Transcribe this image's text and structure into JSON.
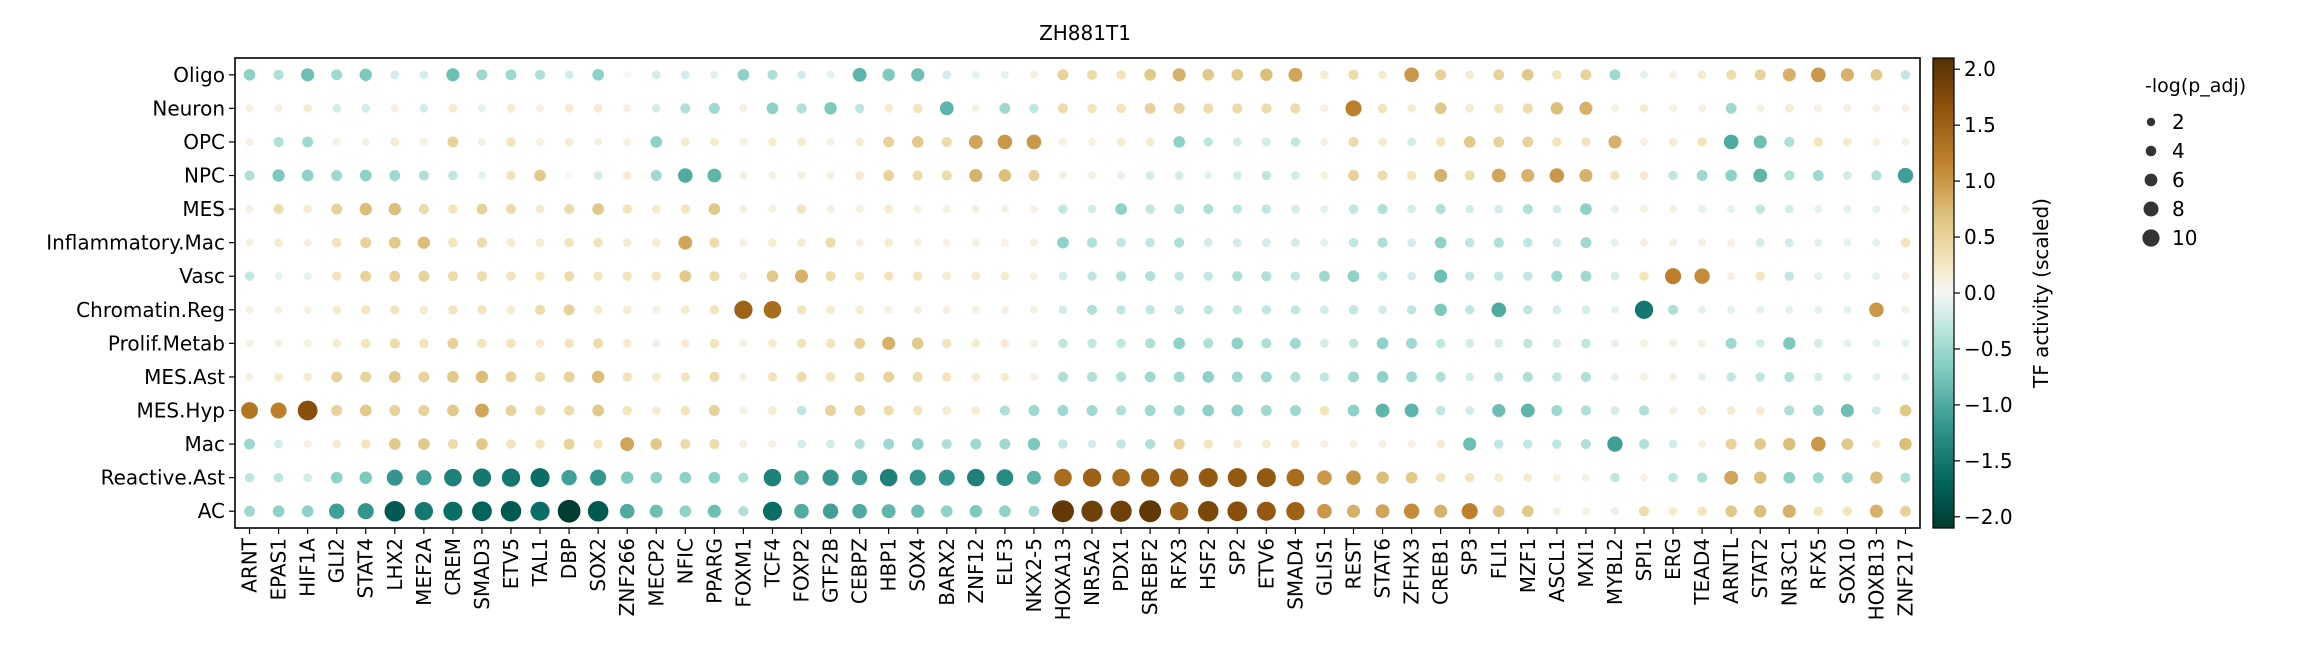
{
  "chart_data": {
    "type": "dotplot",
    "title": "ZH881T1",
    "rows": [
      "Oligo",
      "Neuron",
      "OPC",
      "NPC",
      "MES",
      "Inflammatory.Mac",
      "Vasc",
      "Chromatin.Reg",
      "Prolif.Metab",
      "MES.Ast",
      "MES.Hyp",
      "Mac",
      "Reactive.Ast",
      "AC"
    ],
    "columns": [
      "ARNT",
      "EPAS1",
      "HIF1A",
      "GLI2",
      "STAT4",
      "LHX2",
      "MEF2A",
      "CREM",
      "SMAD3",
      "ETV5",
      "TAL1",
      "DBP",
      "SOX2",
      "ZNF266",
      "MECP2",
      "NFIC",
      "PPARG",
      "FOXM1",
      "TCF4",
      "FOXP2",
      "GTF2B",
      "CEBPZ",
      "HBP1",
      "SOX4",
      "BARX2",
      "ZNF12",
      "ELF3",
      "NKX2-5",
      "HOXA13",
      "NR5A2",
      "PDX1",
      "SREBF2",
      "RFX3",
      "HSF2",
      "SP2",
      "ETV6",
      "SMAD4",
      "GLIS1",
      "REST",
      "STAT6",
      "ZFHX3",
      "CREB1",
      "SP3",
      "FLI1",
      "MZF1",
      "ASCL1",
      "MXI1",
      "MYBL2",
      "SPI1",
      "ERG",
      "TEAD4",
      "ARNTL",
      "STAT2",
      "NR3C1",
      "RFX5",
      "SOX10",
      "HOXB13",
      "ZNF217"
    ],
    "activity": [
      [
        -0.6,
        -0.4,
        -0.8,
        -0.5,
        -0.7,
        -0.2,
        -0.2,
        -0.8,
        -0.5,
        -0.5,
        -0.4,
        -0.2,
        -0.6,
        0,
        -0.2,
        -0.2,
        -0.1,
        -0.6,
        -0.4,
        -0.2,
        -0.1,
        -0.9,
        -0.7,
        -0.8,
        -0.2,
        -0.1,
        -0.1,
        0.1,
        0.5,
        0.4,
        0.3,
        0.6,
        0.8,
        0.6,
        0.6,
        0.7,
        0.9,
        0.2,
        0.4,
        0.2,
        1.0,
        0.5,
        0.2,
        0.5,
        0.6,
        0.3,
        0.5,
        -0.5,
        -0.1,
        0.1,
        0.2,
        0.4,
        0.5,
        0.8,
        1.0,
        0.8,
        0.6,
        -0.3
      ],
      [
        0.1,
        0.1,
        0.2,
        -0.2,
        -0.2,
        0.1,
        -0.2,
        0.2,
        -0.1,
        0.2,
        0.1,
        0.2,
        0.2,
        0.1,
        -0.2,
        -0.4,
        -0.5,
        0.1,
        -0.6,
        -0.4,
        -0.7,
        -0.3,
        0.2,
        0.3,
        -0.9,
        0.1,
        -0.5,
        -0.3,
        0.4,
        0.3,
        0.3,
        0.5,
        0.5,
        0.4,
        0.4,
        0.4,
        0.4,
        0.1,
        1.2,
        0.3,
        0.2,
        0.6,
        0.2,
        0.3,
        0.4,
        0.7,
        0.8,
        0.1,
        0.2,
        0.1,
        0.1,
        -0.5,
        0.1,
        0.2,
        0.1,
        0.1,
        0.1,
        0.1
      ],
      [
        0.1,
        -0.4,
        -0.5,
        0.1,
        0.1,
        0.2,
        0.1,
        0.5,
        0.1,
        0.3,
        0.1,
        0.2,
        0.1,
        0.1,
        -0.6,
        0.2,
        0.2,
        0.1,
        0.2,
        0.2,
        0.1,
        0.2,
        0.5,
        0.6,
        0.4,
        0.9,
        1.0,
        1.0,
        0.1,
        0.1,
        0.2,
        0.2,
        -0.6,
        -0.3,
        -0.2,
        -0.2,
        -0.3,
        0.1,
        0.4,
        0.2,
        -0.2,
        0.3,
        0.6,
        0.5,
        0.5,
        0.3,
        0.3,
        0.8,
        0.1,
        0.2,
        0.3,
        -1.0,
        -0.8,
        -0.4,
        0.3,
        0.2,
        0.1,
        0.1
      ],
      [
        -0.4,
        -0.7,
        -0.6,
        -0.5,
        -0.6,
        -0.5,
        -0.4,
        -0.3,
        -0.1,
        0.3,
        0.6,
        0,
        -0.2,
        0.2,
        -0.5,
        -1.0,
        -0.9,
        0.1,
        0.1,
        0.1,
        0.1,
        0.2,
        0.5,
        0.4,
        0.4,
        0.8,
        0.7,
        0.5,
        0.1,
        0.1,
        -0.1,
        -0.2,
        -0.2,
        -0.1,
        -0.2,
        -0.3,
        -0.2,
        0.1,
        0.5,
        0.4,
        0.3,
        0.8,
        0.4,
        0.9,
        0.8,
        1.0,
        0.8,
        0.3,
        0.2,
        -0.3,
        -0.5,
        -0.6,
        -0.9,
        -0.4,
        -0.5,
        -0.2,
        -0.4,
        -1.1
      ],
      [
        0.1,
        0.4,
        0.2,
        0.5,
        0.7,
        0.7,
        0.4,
        0.3,
        0.5,
        0.4,
        0.2,
        0.4,
        0.6,
        0.3,
        0.2,
        0.3,
        0.6,
        0.1,
        0.1,
        0.3,
        0.1,
        0.1,
        0.2,
        0.1,
        0.1,
        0.1,
        0.1,
        0.1,
        -0.3,
        -0.2,
        -0.6,
        -0.3,
        -0.4,
        -0.4,
        -0.3,
        -0.3,
        -0.2,
        -0.1,
        -0.3,
        -0.4,
        -0.2,
        -0.4,
        -0.2,
        -0.2,
        -0.4,
        -0.2,
        -0.6,
        -0.1,
        0.1,
        0.1,
        -0.1,
        -0.1,
        -0.3,
        -0.2,
        -0.1,
        -0.1,
        -0.1,
        0.1
      ],
      [
        0.1,
        0.2,
        0.1,
        0.3,
        0.5,
        0.6,
        0.7,
        0.3,
        0.4,
        0.2,
        0.2,
        0.3,
        0.3,
        0.2,
        0.2,
        0.9,
        0.4,
        0.1,
        0.2,
        0.2,
        0.4,
        0.1,
        0.2,
        0.1,
        0.1,
        0.1,
        0.1,
        0.1,
        -0.6,
        -0.4,
        -0.3,
        -0.3,
        -0.4,
        -0.2,
        -0.2,
        -0.2,
        -0.2,
        -0.1,
        -0.3,
        -0.4,
        -0.2,
        -0.6,
        -0.3,
        -0.4,
        -0.3,
        -0.2,
        -0.5,
        -0.1,
        0.1,
        0.1,
        0.1,
        0.1,
        -0.2,
        -0.2,
        -0.1,
        -0.1,
        -0.1,
        0.3
      ],
      [
        -0.3,
        -0.1,
        -0.1,
        0.3,
        0.5,
        0.5,
        0.5,
        0.4,
        0.4,
        0.3,
        0.3,
        0.4,
        0.3,
        0.3,
        0.3,
        0.6,
        0.4,
        0.1,
        0.6,
        0.8,
        0.4,
        0.3,
        0.3,
        0.3,
        0.2,
        0.2,
        0.2,
        0.1,
        -0.2,
        -0.3,
        -0.4,
        -0.4,
        -0.3,
        -0.3,
        -0.4,
        -0.4,
        -0.3,
        -0.5,
        -0.6,
        -0.3,
        -0.2,
        -0.8,
        -0.3,
        -0.3,
        -0.3,
        -0.5,
        -0.5,
        -0.2,
        0.3,
        1.2,
        1.1,
        0.1,
        0.3,
        -0.3,
        -0.1,
        -0.1,
        -0.1,
        0.1
      ],
      [
        0.1,
        0.1,
        0.1,
        0.2,
        0.3,
        0.3,
        0.2,
        0.3,
        0.3,
        0.2,
        0.4,
        0.5,
        0.2,
        0.2,
        0.1,
        0.2,
        0.3,
        1.5,
        1.4,
        0.3,
        0.2,
        0.2,
        0.1,
        0.1,
        0.1,
        0.1,
        0.1,
        0.1,
        -0.2,
        -0.4,
        -0.3,
        -0.3,
        -0.3,
        -0.3,
        -0.3,
        -0.3,
        -0.3,
        -0.2,
        -0.3,
        -0.2,
        -0.3,
        -0.7,
        -0.3,
        -1.0,
        -0.3,
        -0.2,
        -0.2,
        -0.1,
        -1.5,
        -0.4,
        -0.1,
        -0.1,
        -0.1,
        -0.1,
        -0.1,
        -0.1,
        1.0,
        0.1
      ],
      [
        0.1,
        0.1,
        0.1,
        0.2,
        0.3,
        0.4,
        0.3,
        0.5,
        0.3,
        0.3,
        0.2,
        0.3,
        0.4,
        0.2,
        0.1,
        0.2,
        0.3,
        0.1,
        0.2,
        0.3,
        0.3,
        0.5,
        0.8,
        0.6,
        0.3,
        0.2,
        0.2,
        0.1,
        -0.3,
        -0.3,
        -0.3,
        -0.4,
        -0.6,
        -0.4,
        -0.6,
        -0.4,
        -0.5,
        -0.2,
        -0.3,
        -0.6,
        -0.5,
        -0.3,
        -0.2,
        -0.2,
        -0.3,
        -0.2,
        -0.3,
        -0.1,
        0.1,
        0.1,
        0.1,
        -0.5,
        -0.2,
        -0.7,
        -0.2,
        -0.1,
        -0.1,
        -0.1
      ],
      [
        0.1,
        0.2,
        0.2,
        0.5,
        0.5,
        0.6,
        0.5,
        0.6,
        0.7,
        0.5,
        0.4,
        0.5,
        0.7,
        0.3,
        0.2,
        0.3,
        0.4,
        0.1,
        0.3,
        0.4,
        0.3,
        0.4,
        0.5,
        0.4,
        0.3,
        0.2,
        0.2,
        0.1,
        -0.4,
        -0.4,
        -0.4,
        -0.5,
        -0.5,
        -0.6,
        -0.5,
        -0.5,
        -0.4,
        -0.3,
        -0.5,
        -0.6,
        -0.5,
        -0.4,
        -0.2,
        -0.3,
        -0.4,
        -0.3,
        -0.4,
        -0.1,
        0.1,
        0.1,
        -0.1,
        -0.3,
        -0.3,
        -0.4,
        -0.2,
        -0.2,
        -0.1,
        -0.1
      ],
      [
        1.3,
        1.2,
        1.7,
        0.5,
        0.6,
        0.5,
        0.5,
        0.6,
        0.9,
        0.5,
        0.4,
        0.4,
        0.6,
        0.3,
        0.2,
        0.3,
        0.5,
        0.1,
        0.2,
        -0.3,
        0.5,
        0.5,
        0.4,
        0.3,
        0.2,
        0.2,
        -0.4,
        -0.5,
        -0.5,
        -0.5,
        -0.4,
        -0.5,
        -0.5,
        -0.6,
        -0.6,
        -0.5,
        -0.5,
        0.3,
        -0.6,
        -0.9,
        -0.9,
        -0.3,
        -0.2,
        -0.8,
        -0.9,
        -0.5,
        -0.4,
        -0.2,
        -0.4,
        0.1,
        0.2,
        0.2,
        0.2,
        -0.4,
        -0.5,
        -0.8,
        -0.2,
        0.6
      ],
      [
        -0.5,
        -0.2,
        0.1,
        0.2,
        0.3,
        0.6,
        0.6,
        0.4,
        0.6,
        0.3,
        0.3,
        0.5,
        0.3,
        0.9,
        0.6,
        0.4,
        0.4,
        0.1,
        0.1,
        -0.2,
        -0.2,
        -0.4,
        -0.5,
        -0.6,
        -0.4,
        -0.5,
        -0.5,
        -0.7,
        -0.3,
        -0.2,
        -0.3,
        -0.4,
        0.5,
        0.3,
        0.2,
        0.2,
        0.2,
        0.1,
        0.1,
        0.1,
        0.1,
        0.2,
        -0.8,
        -0.3,
        -0.3,
        -0.3,
        -0.4,
        -1.1,
        -0.4,
        -0.2,
        0.1,
        0.5,
        0.6,
        0.7,
        1.0,
        0.6,
        0.2,
        0.7
      ],
      [
        -0.3,
        -0.3,
        -0.2,
        -0.6,
        -0.7,
        -1.2,
        -1.1,
        -1.4,
        -1.5,
        -1.5,
        -1.6,
        -1.1,
        -1.2,
        -0.7,
        -0.6,
        -0.6,
        -0.6,
        -0.4,
        -1.4,
        -1.0,
        -1.2,
        -1.1,
        -1.4,
        -1.2,
        -1.2,
        -1.4,
        -1.3,
        -0.9,
        1.4,
        1.5,
        1.4,
        1.5,
        1.5,
        1.6,
        1.6,
        1.6,
        1.4,
        1.0,
        1.0,
        0.7,
        0.6,
        0.3,
        0.3,
        0.2,
        0.2,
        0.1,
        0.1,
        -0.3,
        0.1,
        -0.3,
        -0.4,
        0.9,
        0.7,
        -0.6,
        -0.5,
        -0.5,
        0.7,
        -0.4
      ],
      [
        -0.5,
        -0.6,
        -0.6,
        -1.1,
        -1.2,
        -1.8,
        -1.5,
        -1.6,
        -1.7,
        -1.8,
        -1.6,
        -2.1,
        -1.8,
        -1.0,
        -0.8,
        -0.6,
        -0.8,
        -0.4,
        -1.6,
        -1.0,
        -1.1,
        -1.0,
        -0.9,
        -0.8,
        -0.6,
        -0.7,
        -0.6,
        -0.5,
        2.0,
        1.9,
        1.9,
        2.0,
        1.5,
        1.8,
        1.7,
        1.6,
        1.5,
        1.0,
        0.8,
        0.9,
        1.1,
        0.8,
        1.2,
        0.6,
        0.6,
        0.1,
        0.1,
        -0.1,
        0.4,
        0.2,
        0.3,
        0.6,
        0.7,
        0.8,
        0.3,
        0.3,
        0.8,
        0.5
      ]
    ],
    "colorbar": {
      "label": "TF activity (scaled)",
      "range": [
        -2.1,
        2.1
      ],
      "ticks": [
        2.0,
        1.5,
        1.0,
        0.5,
        0.0,
        -0.5,
        -1.0,
        -1.5,
        -2.0
      ],
      "tick_labels": [
        "2.0",
        "1.5",
        "1.0",
        "0.5",
        "0.0",
        "−0.5",
        "−1.0",
        "−1.5",
        "−2.0"
      ]
    },
    "size_legend": {
      "title": "-log(p_adj)",
      "values": [
        2,
        4,
        6,
        8,
        10
      ]
    },
    "colors": {
      "low": "#003c30",
      "mid": "#f7f7f7",
      "high": "#543005"
    }
  }
}
